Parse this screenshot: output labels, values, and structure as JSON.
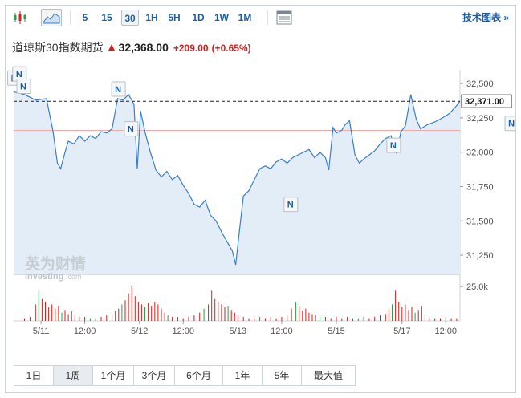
{
  "toolbar": {
    "chart_icons": [
      "candlestick-icon",
      "area-chart-icon"
    ],
    "intervals": [
      {
        "label": "5",
        "active": false
      },
      {
        "label": "15",
        "active": false
      },
      {
        "label": "30",
        "active": true
      },
      {
        "label": "1H",
        "active": false
      },
      {
        "label": "5H",
        "active": false
      },
      {
        "label": "1D",
        "active": false
      },
      {
        "label": "1W",
        "active": false
      },
      {
        "label": "1M",
        "active": false
      }
    ],
    "tech_chart_label": "技术图表 »"
  },
  "header": {
    "instrument": "道琼斯30指数期货",
    "price": "32,368.00",
    "change": "+209.00",
    "change_pct": "(+0.65%)",
    "direction": "up"
  },
  "watermark": {
    "cn": "英为财情",
    "en": "Investing",
    "suffix": ".com"
  },
  "colors": {
    "line": "#3a7ec6",
    "area": "#e3edf7",
    "up": "#d91e18",
    "down": "#2e9b46",
    "accent": "#1a5fa8"
  },
  "range_buttons": [
    {
      "label": "1日",
      "active": false
    },
    {
      "label": "1周",
      "active": true
    },
    {
      "label": "1个月",
      "active": false
    },
    {
      "label": "3个月",
      "active": false
    },
    {
      "label": "6个月",
      "active": false
    },
    {
      "label": "1年",
      "active": false
    },
    {
      "label": "5年",
      "active": false
    },
    {
      "label": "最大值",
      "active": false
    }
  ],
  "chart_data": {
    "type": "area",
    "x_ticks": [
      "5/11",
      "12:00",
      "5/12",
      "12:00",
      "5/13",
      "12:00",
      "5/15",
      "5/17",
      "12:00"
    ],
    "y_ticks": [
      32500,
      32250,
      32000,
      31750,
      31500,
      31250
    ],
    "ylim": [
      31110,
      32600
    ],
    "current_price_label": "32,371.00",
    "current_price_value": 32371,
    "reference_price_value": 32159,
    "volume_tick_label": "25.0k",
    "news_marker_label": "N",
    "news_markers": [
      {
        "x": 0.04,
        "value": 32540
      },
      {
        "x": 0.5,
        "value": 32570
      },
      {
        "x": 0.88,
        "value": 32480
      },
      {
        "x": 9.55,
        "value": 32460
      },
      {
        "x": 10.7,
        "value": 32170
      },
      {
        "x": 25.3,
        "value": 31620
      },
      {
        "x": 34.7,
        "value": 32050
      },
      {
        "x": 45.5,
        "value": 32210
      }
    ],
    "x_tick_index": [
      2.5,
      6.5,
      11.5,
      15.5,
      20.5,
      24.5,
      29.5,
      35.5,
      39.5
    ],
    "price": [
      [
        0,
        32440
      ],
      [
        1,
        32420
      ],
      [
        2,
        32380
      ],
      [
        3,
        32390
      ],
      [
        3.6,
        32150
      ],
      [
        4,
        31920
      ],
      [
        4.3,
        31880
      ],
      [
        4.7,
        32000
      ],
      [
        5,
        32080
      ],
      [
        5.5,
        32060
      ],
      [
        6,
        32120
      ],
      [
        6.5,
        32080
      ],
      [
        7,
        32120
      ],
      [
        7.5,
        32100
      ],
      [
        8,
        32150
      ],
      [
        8.5,
        32140
      ],
      [
        9,
        32170
      ],
      [
        9.5,
        32390
      ],
      [
        10,
        32380
      ],
      [
        10.5,
        32420
      ],
      [
        11,
        32350
      ],
      [
        11.3,
        31880
      ],
      [
        11.6,
        32300
      ],
      [
        12,
        32150
      ],
      [
        12.5,
        32000
      ],
      [
        13,
        31870
      ],
      [
        13.5,
        31820
      ],
      [
        14,
        31860
      ],
      [
        14.5,
        31800
      ],
      [
        15,
        31830
      ],
      [
        15.5,
        31760
      ],
      [
        16,
        31700
      ],
      [
        16.5,
        31620
      ],
      [
        17,
        31600
      ],
      [
        17.5,
        31650
      ],
      [
        18,
        31540
      ],
      [
        18.5,
        31500
      ],
      [
        19,
        31420
      ],
      [
        19.5,
        31350
      ],
      [
        20,
        31280
      ],
      [
        20.3,
        31180
      ],
      [
        20.6,
        31400
      ],
      [
        21,
        31680
      ],
      [
        21.5,
        31720
      ],
      [
        22,
        31800
      ],
      [
        22.5,
        31880
      ],
      [
        23,
        31900
      ],
      [
        23.5,
        31880
      ],
      [
        24,
        31930
      ],
      [
        24.5,
        31950
      ],
      [
        25,
        31920
      ],
      [
        25.5,
        31960
      ],
      [
        26,
        31980
      ],
      [
        26.5,
        32000
      ],
      [
        27,
        32020
      ],
      [
        27.5,
        31960
      ],
      [
        28,
        32000
      ],
      [
        28.5,
        31960
      ],
      [
        28.8,
        31870
      ],
      [
        29.2,
        32180
      ],
      [
        29.5,
        32140
      ],
      [
        30,
        32160
      ],
      [
        30.3,
        32200
      ],
      [
        30.7,
        32230
      ],
      [
        31.2,
        31980
      ],
      [
        31.6,
        31920
      ],
      [
        32,
        31950
      ],
      [
        32.5,
        31980
      ],
      [
        33,
        32010
      ],
      [
        33.5,
        32060
      ],
      [
        34,
        32100
      ],
      [
        34.5,
        32120
      ],
      [
        35,
        31990
      ],
      [
        35.4,
        32150
      ],
      [
        35.8,
        32190
      ],
      [
        36,
        32280
      ],
      [
        36.3,
        32420
      ],
      [
        36.8,
        32240
      ],
      [
        37.2,
        32170
      ],
      [
        37.8,
        32200
      ],
      [
        38.5,
        32220
      ],
      [
        39.2,
        32250
      ],
      [
        39.8,
        32280
      ],
      [
        40.4,
        32330
      ],
      [
        40.8,
        32371
      ]
    ],
    "volume": [
      [
        1,
        2
      ],
      [
        1.5,
        3
      ],
      [
        2,
        12
      ],
      [
        2.3,
        22
      ],
      [
        2.6,
        16
      ],
      [
        2.9,
        14
      ],
      [
        3.2,
        10
      ],
      [
        3.5,
        12
      ],
      [
        3.8,
        9
      ],
      [
        4.1,
        11
      ],
      [
        4.4,
        6
      ],
      [
        4.7,
        8
      ],
      [
        5,
        5
      ],
      [
        5.3,
        7
      ],
      [
        5.6,
        4
      ],
      [
        6,
        3
      ],
      [
        6.5,
        3
      ],
      [
        7,
        2
      ],
      [
        7.5,
        2
      ],
      [
        8,
        3
      ],
      [
        8.5,
        4
      ],
      [
        9,
        5
      ],
      [
        9.3,
        7
      ],
      [
        9.6,
        9
      ],
      [
        9.9,
        12
      ],
      [
        10.2,
        15
      ],
      [
        10.5,
        20
      ],
      [
        10.8,
        25
      ],
      [
        11.1,
        18
      ],
      [
        11.4,
        14
      ],
      [
        11.7,
        12
      ],
      [
        12,
        10
      ],
      [
        12.3,
        13
      ],
      [
        12.6,
        11
      ],
      [
        12.9,
        14
      ],
      [
        13.2,
        12
      ],
      [
        13.5,
        9
      ],
      [
        13.8,
        6
      ],
      [
        14.1,
        4
      ],
      [
        14.5,
        3
      ],
      [
        15,
        3
      ],
      [
        15.5,
        2
      ],
      [
        16,
        3
      ],
      [
        16.5,
        4
      ],
      [
        17,
        6
      ],
      [
        17.4,
        9
      ],
      [
        17.8,
        12
      ],
      [
        18.1,
        22
      ],
      [
        18.4,
        16
      ],
      [
        18.7,
        14
      ],
      [
        19,
        12
      ],
      [
        19.3,
        10
      ],
      [
        19.6,
        11
      ],
      [
        19.9,
        8
      ],
      [
        20.2,
        6
      ],
      [
        20.5,
        4
      ],
      [
        21,
        3
      ],
      [
        21.5,
        2
      ],
      [
        22,
        2
      ],
      [
        22.5,
        3
      ],
      [
        23,
        2
      ],
      [
        23.5,
        3
      ],
      [
        24,
        2
      ],
      [
        24.5,
        3
      ],
      [
        25,
        4
      ],
      [
        25.4,
        9
      ],
      [
        25.8,
        14
      ],
      [
        26.1,
        11
      ],
      [
        26.4,
        7
      ],
      [
        26.7,
        9
      ],
      [
        27,
        6
      ],
      [
        27.3,
        5
      ],
      [
        27.6,
        4
      ],
      [
        28,
        3
      ],
      [
        28.5,
        3
      ],
      [
        29,
        2
      ],
      [
        29.5,
        3
      ],
      [
        30,
        2
      ],
      [
        30.5,
        3
      ],
      [
        31,
        2
      ],
      [
        31.5,
        2
      ],
      [
        32,
        3
      ],
      [
        32.5,
        2
      ],
      [
        33,
        3
      ],
      [
        33.5,
        4
      ],
      [
        34,
        5
      ],
      [
        34.3,
        9
      ],
      [
        34.6,
        12
      ],
      [
        34.9,
        22
      ],
      [
        35.2,
        14
      ],
      [
        35.5,
        10
      ],
      [
        35.8,
        12
      ],
      [
        36.1,
        8
      ],
      [
        36.4,
        10
      ],
      [
        36.7,
        6
      ],
      [
        37,
        8
      ],
      [
        37.3,
        11
      ],
      [
        37.6,
        4
      ],
      [
        38,
        2
      ],
      [
        38.5,
        2
      ],
      [
        39,
        2
      ],
      [
        39.5,
        3
      ],
      [
        40,
        2
      ],
      [
        40.5,
        2
      ]
    ],
    "volume_max": 28,
    "volume_tick_value": 25
  }
}
